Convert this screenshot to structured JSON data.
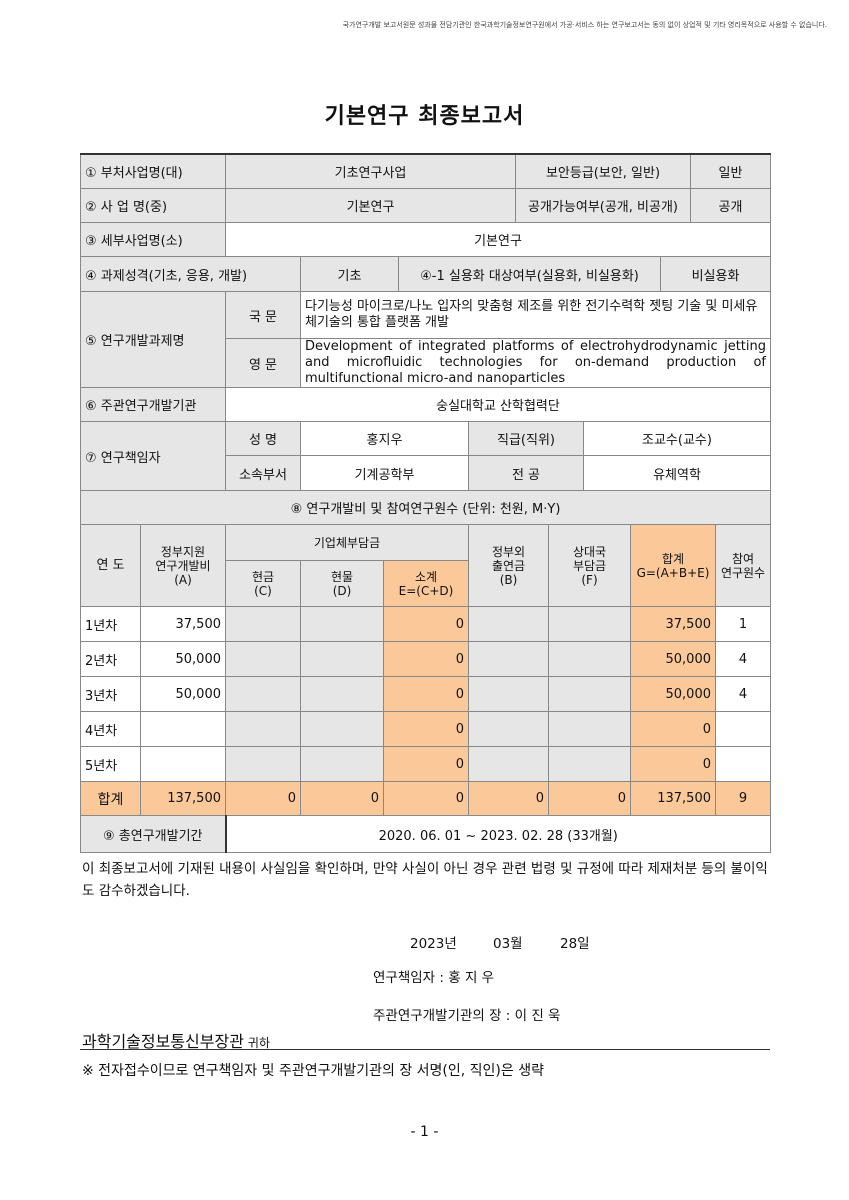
{
  "notice": "국가연구개발 보고서원문 성과물 전담기관인 한국과학기술정보연구원에서 가공·서비스 하는 연구보고서는 동의 없이 상업적 및 기타 영리목적으로 사용할 수 없습니다.",
  "title": "기본연구 최종보고서",
  "info": {
    "r1": {
      "label": "① 부처사업명(대)",
      "value": "기초연구사업",
      "label2": "보안등급(보안, 일반)",
      "value2": "일반"
    },
    "r2": {
      "label": "② 사  업  명(중)",
      "value": "기본연구",
      "label2": "공개가능여부(공개, 비공개)",
      "value2": "공개"
    },
    "r3": {
      "label": "③ 세부사업명(소)",
      "value": "기본연구"
    },
    "r4": {
      "label": "④ 과제성격(기초, 응용, 개발)",
      "value": "기초",
      "label2": "④-1 실용화 대상여부(실용화, 비실용화)",
      "value2": "비실용화"
    },
    "r5": {
      "label": "⑤ 연구개발과제명",
      "kr_label": "국 문",
      "kr": "다기능성 마이크로/나노 입자의 맞춤형 제조를 위한 전기수력학 젯팅 기술 및 미세유체기술의 통합 플랫폼 개발",
      "en_label": "영 문",
      "en": "Development of integrated platforms of electrohydrodynamic jetting and microfluidic technologies for on-demand production of multifunctional micro-and nanoparticles"
    },
    "r6": {
      "label": "⑥ 주관연구개발기관",
      "value": "숭실대학교 산학협력단"
    },
    "r7": {
      "label": "⑦ 연구책임자",
      "name_label": "성 명",
      "name": "홍지우",
      "rank_label": "직급(직위)",
      "rank": "조교수(교수)",
      "dept_label": "소속부서",
      "dept": "기계공학부",
      "major_label": "전 공",
      "major": "유체역학"
    }
  },
  "budget": {
    "title": "⑧ 연구개발비 및 참여연구원수 (단위: 천원, M·Y)",
    "headers": {
      "year": "연 도",
      "gov": "정부지원\n연구개발비\n(A)",
      "corp": "기업체부담금",
      "cash": "현금\n(C)",
      "kind": "현물\n(D)",
      "sub": "소계\nE=(C+D)",
      "nongov": "정부외\n출연금\n(B)",
      "partner": "상대국\n부담금\n(F)",
      "total": "합계\nG=(A+B+E)",
      "people": "참여\n연구원수"
    },
    "rows": [
      {
        "year": "1년차",
        "gov": "37,500",
        "cash": "",
        "kind": "",
        "sub": "0",
        "nongov": "",
        "partner": "",
        "total": "37,500",
        "people": "1"
      },
      {
        "year": "2년차",
        "gov": "50,000",
        "cash": "",
        "kind": "",
        "sub": "0",
        "nongov": "",
        "partner": "",
        "total": "50,000",
        "people": "4"
      },
      {
        "year": "3년차",
        "gov": "50,000",
        "cash": "",
        "kind": "",
        "sub": "0",
        "nongov": "",
        "partner": "",
        "total": "50,000",
        "people": "4"
      },
      {
        "year": "4년차",
        "gov": "",
        "cash": "",
        "kind": "",
        "sub": "0",
        "nongov": "",
        "partner": "",
        "total": "0",
        "people": ""
      },
      {
        "year": "5년차",
        "gov": "",
        "cash": "",
        "kind": "",
        "sub": "0",
        "nongov": "",
        "partner": "",
        "total": "0",
        "people": ""
      },
      {
        "year": "합계",
        "gov": "137,500",
        "cash": "0",
        "kind": "0",
        "sub": "0",
        "nongov": "0",
        "partner": "0",
        "total": "137,500",
        "people": "9"
      }
    ]
  },
  "period": {
    "label": "⑨ 총연구개발기간",
    "value": "2020. 06. 01 ~ 2023. 02. 28 (33개월)"
  },
  "statement": "이 최종보고서에 기재된 내용이 사실임을 확인하며, 만약 사실이 아닌 경우 관련 법령 및 규정에 따라 제재처분 등의 불이익도 감수하겠습니다.",
  "date": {
    "year": "2023년",
    "month": "03월",
    "day": "28일"
  },
  "pi_line": "연구책임자 :  홍 지 우",
  "head_line": "주관연구개발기관의 장 : 이 진 욱",
  "minister": "과학기술정보통신부장관",
  "minister_suffix": "귀하",
  "note": "※ 전자접수이므로 연구책임자 및 주관연구개발기관의 장 서명(인, 직인)은 생략",
  "page_number": "- 1 -"
}
